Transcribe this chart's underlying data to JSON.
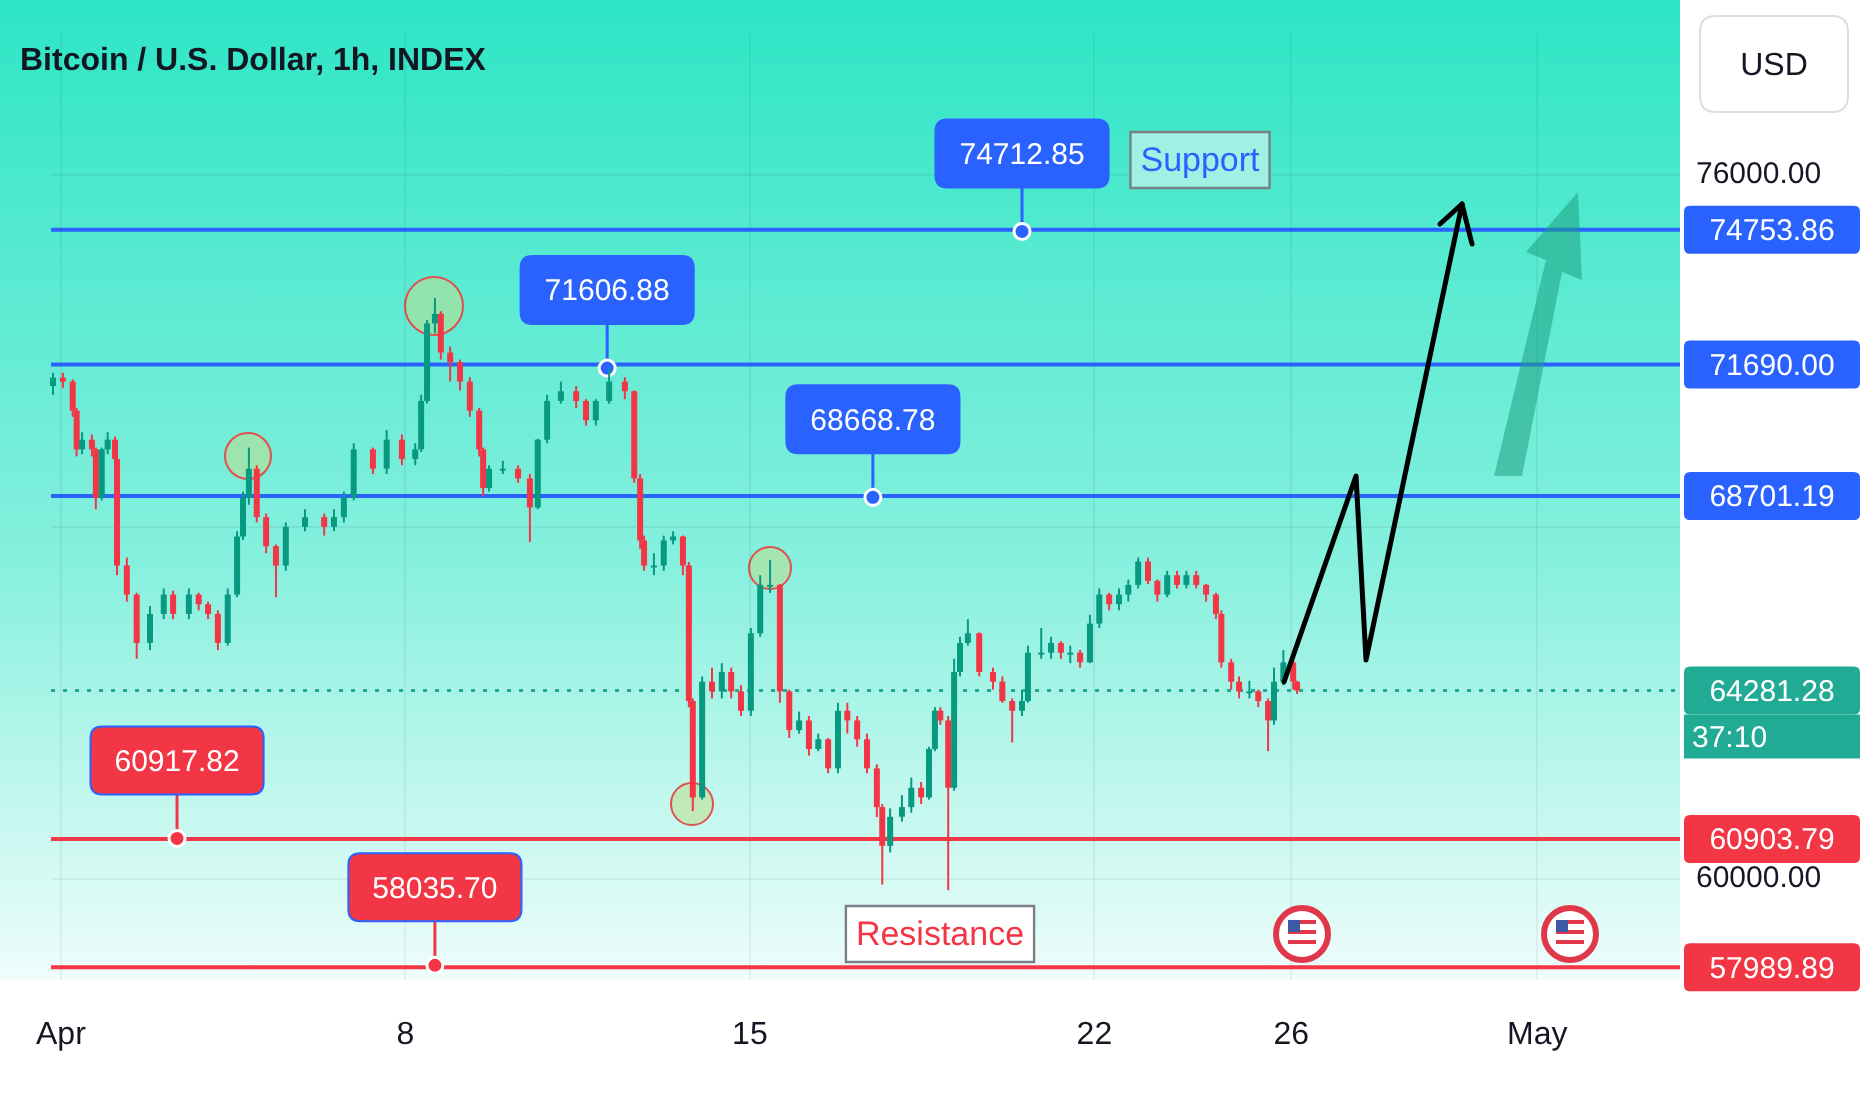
{
  "chart_data": {
    "type": "candlestick",
    "title": "Bitcoin / U.S. Dollar, 1h, INDEX",
    "x": [
      0.84,
      1.04,
      1.24,
      1.32,
      1.43,
      1.63,
      1.71,
      1.83,
      1.95,
      2.1,
      2.14,
      2.34,
      2.54,
      2.81,
      3.09,
      3.28,
      3.6,
      3.8,
      3.99,
      4.19,
      4.39,
      4.58,
      4.7,
      4.82,
      4.98,
      5.17,
      5.37,
      5.57,
      5.96,
      6.35,
      6.55,
      6.75,
      6.95,
      7.34,
      7.62,
      7.93,
      8.2,
      8.32,
      8.44,
      8.6,
      8.72,
      8.91,
      9.11,
      9.31,
      9.5,
      9.58,
      9.7,
      9.98,
      10.29,
      10.53,
      10.69,
      10.88,
      11.16,
      11.47,
      11.67,
      11.87,
      12.14,
      12.46,
      12.65,
      12.77,
      12.85,
      13.05,
      13.25,
      13.44,
      13.64,
      13.76,
      13.84,
      14.03,
      14.23,
      14.43,
      14.62,
      14.82,
      15.02,
      15.21,
      15.41,
      15.61,
      15.8,
      16.0,
      16.2,
      16.39,
      16.59,
      16.79,
      16.98,
      17.18,
      17.38,
      17.58,
      17.69,
      17.85,
      18.09,
      18.28,
      18.48,
      18.64,
      18.76,
      18.87,
      19.03,
      19.15,
      19.27,
      19.43,
      19.66,
      19.94,
      20.13,
      20.33,
      20.53,
      20.65,
      20.92,
      21.12,
      21.32,
      21.51,
      21.71,
      21.91,
      22.1,
      22.3,
      22.5,
      22.69,
      22.89,
      23.09,
      23.28,
      23.48,
      23.68,
      23.87,
      24.07,
      24.27,
      24.47,
      24.58,
      24.78,
      24.94,
      25.15,
      25.33,
      25.53,
      25.65,
      25.84,
      26.04,
      26.12
    ],
    "ohlc": [
      [
        71200,
        71500,
        71000,
        71390
      ],
      [
        71390,
        71500,
        71150,
        71300
      ],
      [
        71300,
        71350,
        70500,
        70640
      ],
      [
        70640,
        70700,
        69600,
        69760
      ],
      [
        69760,
        70150,
        69650,
        69980
      ],
      [
        69980,
        70100,
        69600,
        69760
      ],
      [
        69760,
        69800,
        68400,
        68660
      ],
      [
        68660,
        69800,
        68600,
        69760
      ],
      [
        69760,
        70150,
        69650,
        69980
      ],
      [
        69980,
        70050,
        69400,
        69540
      ],
      [
        69540,
        69600,
        66900,
        67120
      ],
      [
        67120,
        67300,
        66300,
        66460
      ],
      [
        66460,
        66500,
        65000,
        65360
      ],
      [
        65360,
        66200,
        65200,
        66020
      ],
      [
        66020,
        66600,
        65900,
        66460
      ],
      [
        66460,
        66550,
        65900,
        66020
      ],
      [
        66020,
        66600,
        65900,
        66460
      ],
      [
        66460,
        66500,
        66100,
        66240
      ],
      [
        66240,
        66300,
        65900,
        66020
      ],
      [
        66020,
        66100,
        65200,
        65360
      ],
      [
        65360,
        66600,
        65300,
        66460
      ],
      [
        66460,
        67900,
        66400,
        67780
      ],
      [
        67780,
        68800,
        67700,
        68660
      ],
      [
        68660,
        69800,
        68500,
        69320
      ],
      [
        69320,
        69400,
        68100,
        68220
      ],
      [
        68220,
        68300,
        67400,
        67560
      ],
      [
        67560,
        67600,
        66400,
        67120
      ],
      [
        67120,
        68100,
        67000,
        68000
      ],
      [
        68000,
        68400,
        67900,
        68220
      ],
      [
        68220,
        68300,
        67800,
        68000
      ],
      [
        68000,
        68400,
        67900,
        68220
      ],
      [
        68220,
        68800,
        68100,
        68660
      ],
      [
        68660,
        69900,
        68600,
        69760
      ],
      [
        69760,
        69800,
        69200,
        69320
      ],
      [
        69320,
        70200,
        69200,
        69980
      ],
      [
        69980,
        70100,
        69400,
        69540
      ],
      [
        69540,
        69900,
        69400,
        69760
      ],
      [
        69760,
        71000,
        69700,
        70860
      ],
      [
        70860,
        72700,
        70800,
        72620
      ],
      [
        72620,
        73200,
        72400,
        72840
      ],
      [
        72840,
        72900,
        71800,
        71960
      ],
      [
        71960,
        72100,
        71300,
        71740
      ],
      [
        71740,
        71800,
        71100,
        71300
      ],
      [
        71300,
        71400,
        70500,
        70640
      ],
      [
        70640,
        70700,
        69600,
        69760
      ],
      [
        69760,
        69800,
        68700,
        68880
      ],
      [
        68880,
        69400,
        68800,
        69320
      ],
      [
        69320,
        69500,
        69200,
        69320
      ],
      [
        69320,
        69400,
        69000,
        69100
      ],
      [
        69100,
        69200,
        67650,
        68440
      ],
      [
        68440,
        70000,
        68400,
        69980
      ],
      [
        69980,
        71000,
        69900,
        70860
      ],
      [
        70860,
        71300,
        70800,
        71080
      ],
      [
        71080,
        71200,
        70700,
        70860
      ],
      [
        70860,
        70900,
        70300,
        70420
      ],
      [
        70420,
        70900,
        70300,
        70860
      ],
      [
        70860,
        71600,
        70800,
        71300
      ],
      [
        71300,
        71400,
        70900,
        71080
      ],
      [
        71080,
        71100,
        69000,
        69100
      ],
      [
        69100,
        69200,
        67500,
        67690
      ],
      [
        67690,
        67800,
        67000,
        67120
      ],
      [
        67120,
        67400,
        66900,
        67120
      ],
      [
        67120,
        67800,
        67000,
        67690
      ],
      [
        67690,
        67900,
        67600,
        67780
      ],
      [
        67780,
        67800,
        66900,
        67120
      ],
      [
        67120,
        67200,
        63900,
        64040
      ],
      [
        64040,
        64100,
        61540,
        61850
      ],
      [
        61850,
        64600,
        61800,
        64480
      ],
      [
        64480,
        64800,
        64100,
        64260
      ],
      [
        64260,
        64900,
        64100,
        64700
      ],
      [
        64700,
        64800,
        64100,
        64260
      ],
      [
        64260,
        64400,
        63700,
        63820
      ],
      [
        63820,
        65700,
        63700,
        65580
      ],
      [
        65580,
        66900,
        65500,
        66680
      ],
      [
        66680,
        67250,
        66500,
        66680
      ],
      [
        66680,
        66700,
        64000,
        64260
      ],
      [
        64260,
        64300,
        63200,
        63380
      ],
      [
        63380,
        63800,
        63300,
        63600
      ],
      [
        63600,
        63700,
        62800,
        62950
      ],
      [
        62950,
        63300,
        62900,
        63170
      ],
      [
        63170,
        63200,
        62400,
        62510
      ],
      [
        62510,
        64000,
        62400,
        63820
      ],
      [
        63820,
        64000,
        63300,
        63600
      ],
      [
        63600,
        63700,
        63000,
        63170
      ],
      [
        63170,
        63300,
        62400,
        62510
      ],
      [
        62510,
        62600,
        61400,
        61630
      ],
      [
        61630,
        61700,
        59870,
        60750
      ],
      [
        60750,
        61600,
        60600,
        61410
      ],
      [
        61410,
        61900,
        61300,
        61630
      ],
      [
        61630,
        62300,
        61500,
        62070
      ],
      [
        62070,
        62200,
        61700,
        61850
      ],
      [
        61850,
        63000,
        61800,
        62950
      ],
      [
        62950,
        63900,
        62900,
        63820
      ],
      [
        63820,
        63900,
        63500,
        63600
      ],
      [
        63600,
        63700,
        59740,
        62070
      ],
      [
        62070,
        65000,
        62000,
        64700
      ],
      [
        64700,
        65500,
        64600,
        65360
      ],
      [
        65360,
        65900,
        65300,
        65580
      ],
      [
        65580,
        65600,
        64600,
        64700
      ],
      [
        64700,
        64800,
        64300,
        64480
      ],
      [
        64480,
        64600,
        64000,
        64040
      ],
      [
        64040,
        64100,
        63100,
        63820
      ],
      [
        63820,
        64300,
        63700,
        64040
      ],
      [
        64040,
        65300,
        64000,
        65140
      ],
      [
        65140,
        65700,
        65000,
        65140
      ],
      [
        65140,
        65500,
        65000,
        65360
      ],
      [
        65360,
        65400,
        65000,
        65140
      ],
      [
        65140,
        65300,
        64900,
        65140
      ],
      [
        65140,
        65200,
        64800,
        64920
      ],
      [
        64920,
        66000,
        64900,
        65800
      ],
      [
        65800,
        66600,
        65700,
        66460
      ],
      [
        66460,
        66500,
        66100,
        66240
      ],
      [
        66240,
        66600,
        66100,
        66460
      ],
      [
        66460,
        66800,
        66300,
        66680
      ],
      [
        66680,
        67300,
        66600,
        67210
      ],
      [
        67210,
        67300,
        66700,
        66770
      ],
      [
        66770,
        66800,
        66300,
        66460
      ],
      [
        66460,
        67000,
        66400,
        66900
      ],
      [
        66900,
        67000,
        66600,
        66680
      ],
      [
        66680,
        67000,
        66600,
        66900
      ],
      [
        66900,
        67000,
        66600,
        66680
      ],
      [
        66680,
        66700,
        66300,
        66460
      ],
      [
        66460,
        66500,
        65900,
        66020
      ],
      [
        66020,
        66100,
        64800,
        64920
      ],
      [
        64920,
        65000,
        64300,
        64480
      ],
      [
        64480,
        64600,
        64100,
        64260
      ],
      [
        64260,
        64500,
        64100,
        64260
      ],
      [
        64260,
        64300,
        63900,
        64040
      ],
      [
        64040,
        64100,
        62900,
        63600
      ],
      [
        63600,
        64800,
        63500,
        64480
      ],
      [
        64480,
        65200,
        64400,
        64920
      ],
      [
        64920,
        65000,
        64300,
        64480
      ],
      [
        64480,
        64500,
        64200,
        64280
      ]
    ],
    "xlim": [
      0.8,
      33.9
    ],
    "xticks": [
      {
        "value": 1,
        "label": "Apr"
      },
      8,
      15,
      22,
      26,
      {
        "value": 31,
        "label": "May"
      }
    ],
    "ylim": [
      57700,
      79200
    ],
    "yticks": [
      {
        "value": 60000,
        "label": "60000.00"
      },
      {
        "value": 68000,
        "label": null
      },
      {
        "value": 76000,
        "label": "76000.00"
      }
    ],
    "ref_lines": [
      {
        "axis": "y",
        "value": 74753.86,
        "label": "74753.86",
        "color": "#2962ff"
      },
      {
        "axis": "y",
        "value": 71690.0,
        "label": "71690.00",
        "color": "#2962ff"
      },
      {
        "axis": "y",
        "value": 68701.19,
        "label": "68701.19",
        "color": "#2962ff"
      },
      {
        "axis": "y",
        "value": 64281.28,
        "label": "64281.28",
        "color": "#22ab94",
        "line_style": "dotted"
      },
      {
        "axis": "y",
        "value": 60903.79,
        "label": "60903.79",
        "color": "#f23645"
      },
      {
        "axis": "y",
        "value": 57989.89,
        "label": "57989.89",
        "color": "#f23645"
      }
    ],
    "annotations": [
      "USD",
      "37:10",
      {
        "text": "74712.85",
        "x": 20.53,
        "y": 74712.85
      },
      {
        "text": "71606.88",
        "x": 12.1,
        "y": 71606.88
      },
      {
        "text": "68668.78",
        "x": 17.5,
        "y": 68668.78
      },
      {
        "text": "60917.82",
        "x": 3.36,
        "y": 60917.82
      },
      {
        "text": "58035.70",
        "x": 8.6,
        "y": 58035.7
      },
      "Support",
      "Resistance"
    ],
    "grid": true
  }
}
